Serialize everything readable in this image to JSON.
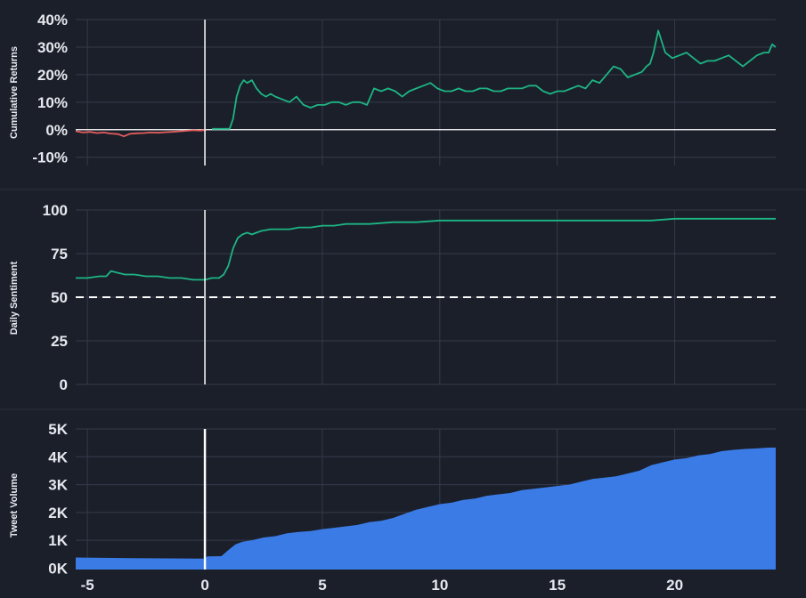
{
  "chart_data": [
    {
      "type": "line",
      "ylabel": "Cumulative Returns",
      "ylim": [
        -13,
        40
      ],
      "xlim": [
        -5.5,
        24.3
      ],
      "y_ticks": [
        {
          "value": 40,
          "label": "40%"
        },
        {
          "value": 30,
          "label": "30%"
        },
        {
          "value": 20,
          "label": "20%"
        },
        {
          "value": 10,
          "label": "10%"
        },
        {
          "value": 0,
          "label": "0%"
        },
        {
          "value": -10,
          "label": "-10%"
        }
      ],
      "reference_line": {
        "y": 0,
        "style": "solid",
        "color": "#ffffff"
      },
      "event_line_x": 0,
      "series": [
        {
          "color": "#e35d5d",
          "x": [
            -5.5,
            -5.2,
            -4.9,
            -4.6,
            -4.3,
            -4.0,
            -3.7,
            -3.45,
            -3.2,
            -2.9,
            -2.6,
            -2.3,
            -2.0,
            -1.7,
            -1.4,
            -1.1,
            -0.8,
            -0.5,
            -0.2,
            0.05
          ],
          "y": [
            -0.5,
            -1.0,
            -0.8,
            -1.2,
            -1.0,
            -1.4,
            -1.6,
            -2.4,
            -1.5,
            -1.3,
            -1.2,
            -1.0,
            -1.1,
            -0.9,
            -0.8,
            -0.6,
            -0.4,
            -0.2,
            -0.3,
            -0.1
          ]
        },
        {
          "color": "#1db583",
          "x": [
            0.3,
            0.6,
            0.9,
            1.05,
            1.2,
            1.35,
            1.5,
            1.65,
            1.8,
            2.0,
            2.2,
            2.4,
            2.6,
            2.8,
            3.0,
            3.3,
            3.6,
            3.9,
            4.2,
            4.5,
            4.8,
            5.1,
            5.4,
            5.7,
            6.0,
            6.3,
            6.6,
            6.9,
            7.2,
            7.5,
            7.8,
            8.1,
            8.4,
            8.7,
            9.0,
            9.3,
            9.6,
            9.9,
            10.2,
            10.5,
            10.8,
            11.1,
            11.4,
            11.7,
            12.0,
            12.3,
            12.6,
            12.9,
            13.2,
            13.5,
            13.8,
            14.1,
            14.4,
            14.7,
            15.0,
            15.3,
            15.6,
            15.9,
            16.2,
            16.5,
            16.8,
            17.1,
            17.4,
            17.7,
            18.0,
            18.3,
            18.6,
            18.8,
            18.95,
            19.1,
            19.3,
            19.6,
            19.9,
            20.2,
            20.5,
            20.8,
            21.1,
            21.4,
            21.7,
            22.0,
            22.3,
            22.6,
            22.9,
            23.2,
            23.5,
            23.8,
            24.0,
            24.15,
            24.3
          ],
          "y": [
            0.3,
            0.3,
            0.3,
            0.3,
            4,
            12,
            16,
            18,
            17,
            18,
            15,
            13,
            12,
            13,
            12,
            11,
            10,
            12,
            9,
            8,
            9,
            9,
            10,
            10,
            9,
            10,
            10,
            9,
            15,
            14,
            15,
            14,
            12,
            14,
            15,
            16,
            17,
            15,
            14,
            14,
            15,
            14,
            14,
            15,
            15,
            14,
            14,
            15,
            15,
            15,
            16,
            16,
            14,
            13,
            14,
            14,
            15,
            16,
            15,
            18,
            17,
            20,
            23,
            22,
            19,
            20,
            21,
            23,
            24,
            28,
            36,
            28,
            26,
            27,
            28,
            26,
            24,
            25,
            25,
            26,
            27,
            25,
            23,
            25,
            27,
            28,
            28,
            31,
            30
          ]
        }
      ]
    },
    {
      "type": "line",
      "ylabel": "Daily Sentiment",
      "ylim": [
        0,
        100
      ],
      "xlim": [
        -5.5,
        24.3
      ],
      "y_ticks": [
        {
          "value": 100,
          "label": "100"
        },
        {
          "value": 75,
          "label": "75"
        },
        {
          "value": 50,
          "label": "50"
        },
        {
          "value": 25,
          "label": "25"
        },
        {
          "value": 0,
          "label": "0"
        }
      ],
      "reference_line": {
        "y": 50,
        "style": "dashed",
        "color": "#ffffff"
      },
      "event_line_x": 0,
      "series": [
        {
          "color": "#1db583",
          "x": [
            -5.5,
            -5.0,
            -4.5,
            -4.2,
            -4.0,
            -3.7,
            -3.4,
            -3.0,
            -2.5,
            -2.0,
            -1.5,
            -1.0,
            -0.5,
            0.0,
            0.3,
            0.6,
            0.8,
            1.0,
            1.2,
            1.4,
            1.6,
            1.8,
            2.0,
            2.4,
            2.8,
            3.2,
            3.6,
            4.0,
            4.5,
            5.0,
            5.5,
            6.0,
            7.0,
            8.0,
            9.0,
            10.0,
            11.0,
            12.0,
            13.0,
            14.0,
            15.0,
            16.0,
            17.0,
            18.0,
            19.0,
            20.0,
            21.0,
            22.0,
            23.0,
            24.3
          ],
          "y": [
            61,
            61,
            62,
            62,
            65,
            64,
            63,
            63,
            62,
            62,
            61,
            61,
            60,
            60,
            61,
            61,
            63,
            68,
            78,
            84,
            86,
            87,
            86,
            88,
            89,
            89,
            89,
            90,
            90,
            91,
            91,
            92,
            92,
            93,
            93,
            94,
            94,
            94,
            94,
            94,
            94,
            94,
            94,
            94,
            94,
            95,
            95,
            95,
            95,
            95
          ]
        }
      ]
    },
    {
      "type": "area",
      "ylabel": "Tweet Volume",
      "ylim": [
        -50,
        5000
      ],
      "xlim": [
        -5.5,
        24.3
      ],
      "y_ticks": [
        {
          "value": 5000,
          "label": "5K"
        },
        {
          "value": 4000,
          "label": "4K"
        },
        {
          "value": 3000,
          "label": "3K"
        },
        {
          "value": 2000,
          "label": "2K"
        },
        {
          "value": 1000,
          "label": "1K"
        },
        {
          "value": 0,
          "label": "0K"
        }
      ],
      "x_ticks": [
        {
          "value": -5,
          "label": "-5"
        },
        {
          "value": 0,
          "label": "0"
        },
        {
          "value": 5,
          "label": "5"
        },
        {
          "value": 10,
          "label": "10"
        },
        {
          "value": 15,
          "label": "15"
        },
        {
          "value": 20,
          "label": "20"
        }
      ],
      "event_line_x": 0,
      "series": [
        {
          "color": "#3b7be6",
          "x": [
            -5.5,
            -3.0,
            0.0,
            0.1,
            0.7,
            1.0,
            1.3,
            1.6,
            2.0,
            2.5,
            3.0,
            3.5,
            4.0,
            4.5,
            5.0,
            5.5,
            6.0,
            6.5,
            7.0,
            7.5,
            8.0,
            8.5,
            9.0,
            9.5,
            10.0,
            10.5,
            11.0,
            11.5,
            12.0,
            12.5,
            13.0,
            13.5,
            14.0,
            14.5,
            15.0,
            15.5,
            16.0,
            16.5,
            17.0,
            17.5,
            18.0,
            18.5,
            19.0,
            19.5,
            20.0,
            20.5,
            21.0,
            21.5,
            22.0,
            22.5,
            23.0,
            23.5,
            24.0,
            24.3
          ],
          "y": [
            380,
            360,
            340,
            420,
            430,
            650,
            850,
            950,
            1000,
            1100,
            1150,
            1250,
            1300,
            1330,
            1400,
            1450,
            1500,
            1550,
            1650,
            1700,
            1800,
            1950,
            2100,
            2200,
            2300,
            2350,
            2450,
            2500,
            2600,
            2650,
            2700,
            2800,
            2850,
            2900,
            2950,
            3000,
            3100,
            3200,
            3250,
            3300,
            3400,
            3500,
            3700,
            3800,
            3900,
            3950,
            4050,
            4100,
            4200,
            4250,
            4280,
            4300,
            4330,
            4330
          ]
        }
      ]
    }
  ]
}
